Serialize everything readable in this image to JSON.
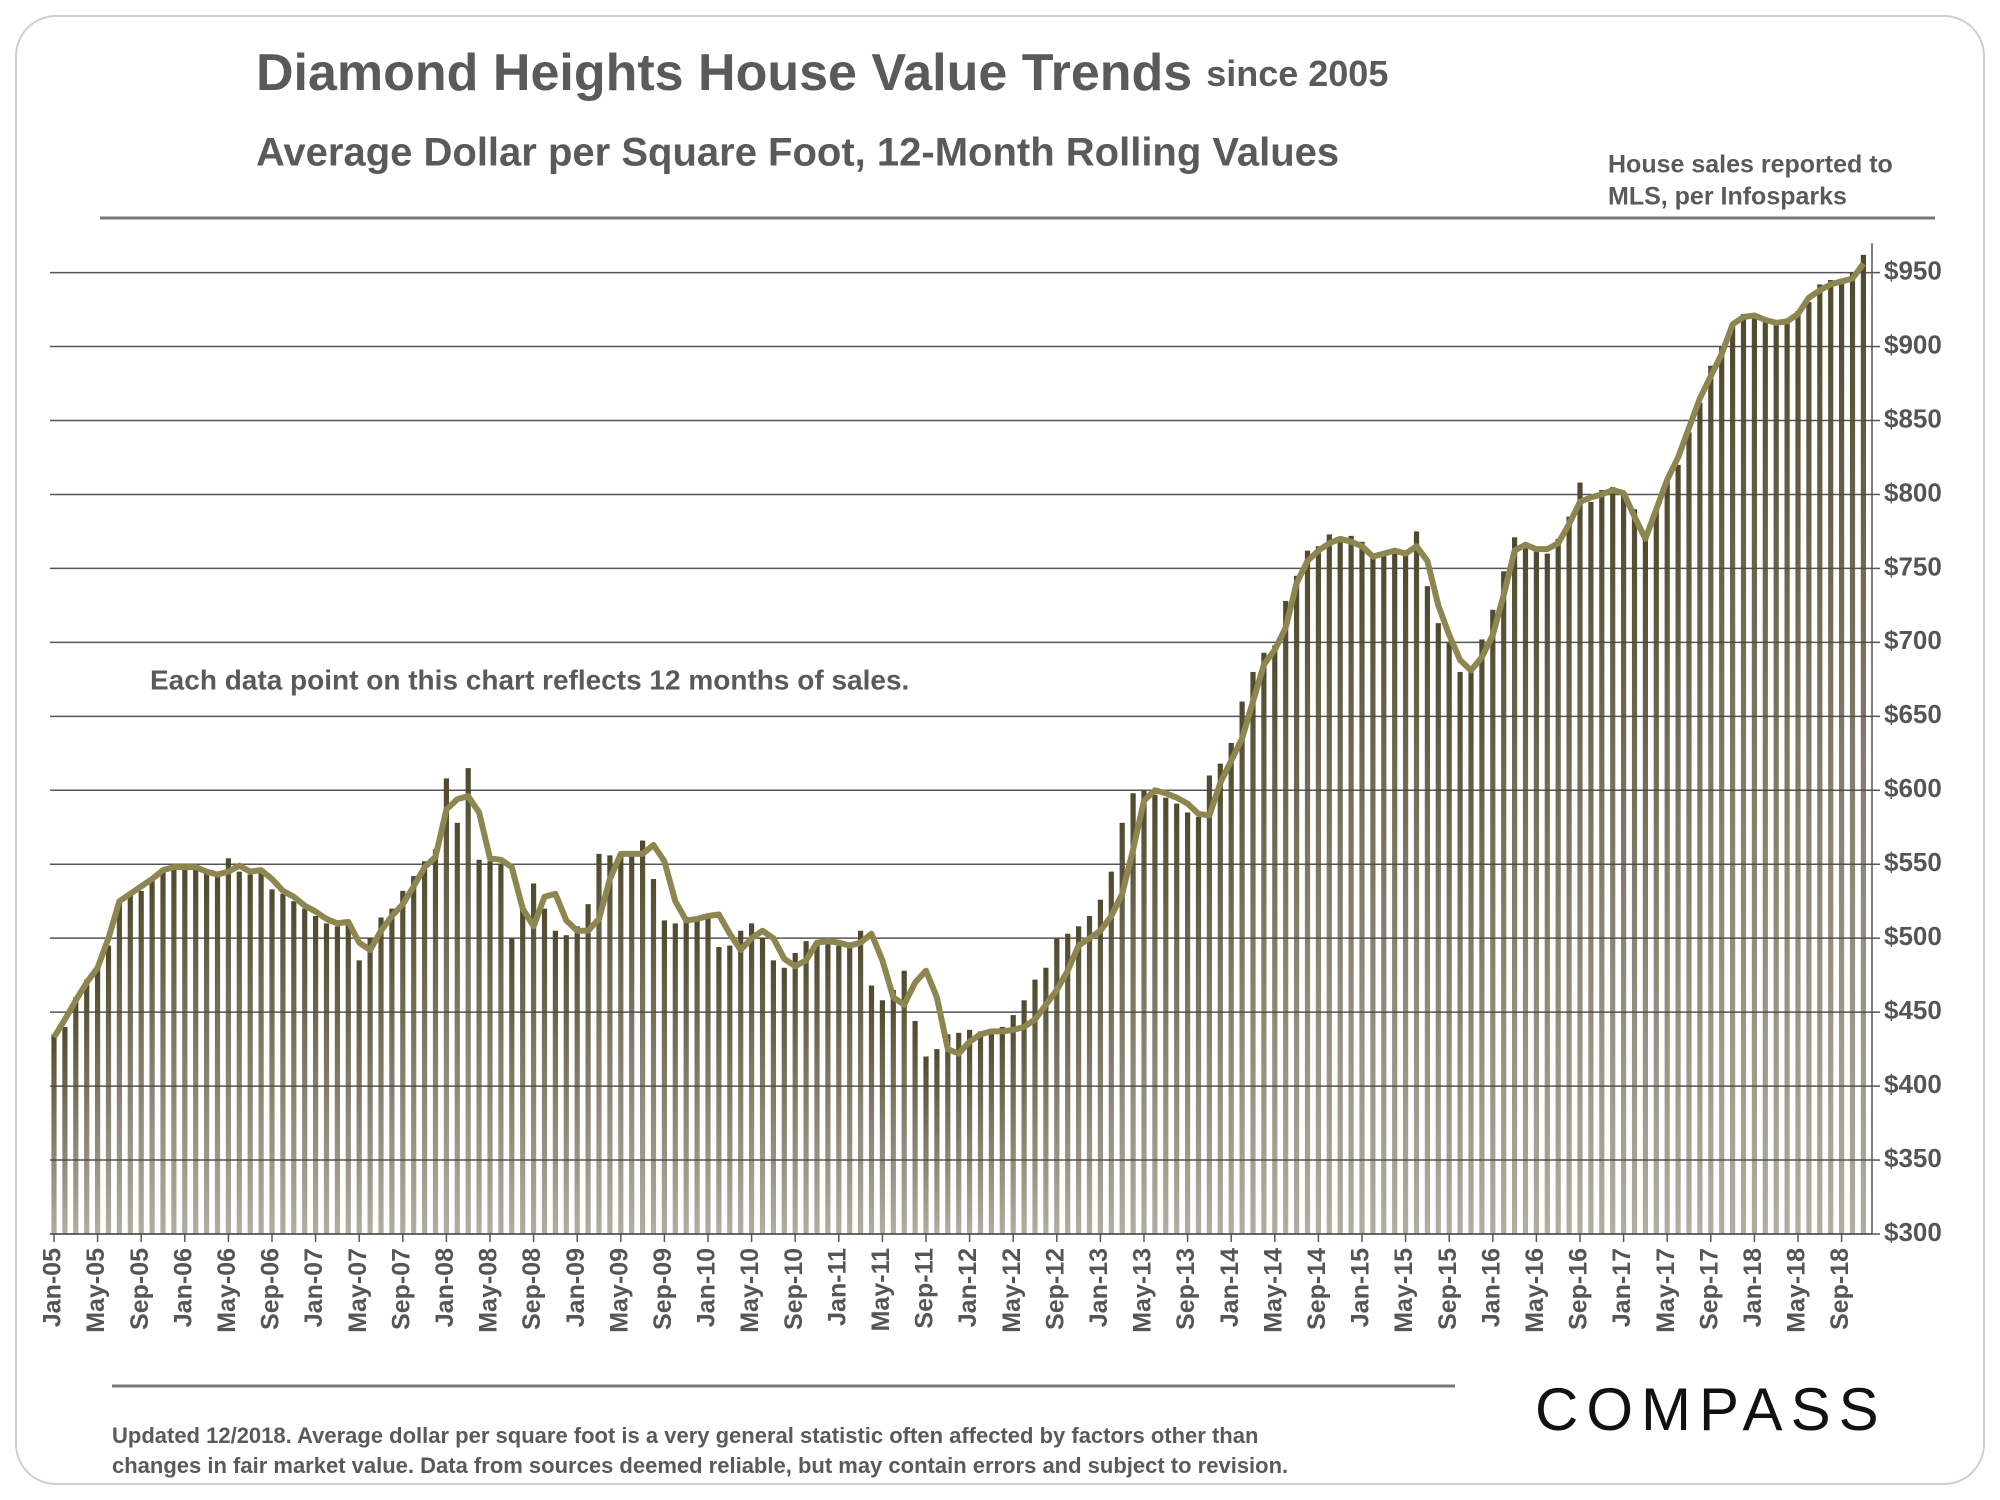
{
  "chart_data": {
    "type": "bar",
    "title": "Diamond Heights House Value Trends",
    "title_suffix": "since 2005",
    "subtitle": "Average Dollar per Square Foot, 12-Month Rolling Values",
    "source_note": [
      "House sales reported to",
      "MLS, per Infosparks"
    ],
    "annotation": "Each data point on this chart reflects 12 months of sales.",
    "footnote": [
      "Updated 12/2018. Average dollar per square foot is a very general statistic often affected by factors other than",
      "changes in fair market value. Data from sources deemed reliable, but may contain errors and subject to revision."
    ],
    "brand": "COMPASS",
    "categories": [
      "Jan-05",
      null,
      null,
      null,
      "May-05",
      null,
      null,
      null,
      "Sep-05",
      null,
      null,
      null,
      "Jan-06",
      null,
      null,
      null,
      "May-06",
      null,
      null,
      null,
      "Sep-06",
      null,
      null,
      null,
      "Jan-07",
      null,
      null,
      null,
      "May-07",
      null,
      null,
      null,
      "Sep-07",
      null,
      null,
      null,
      "Jan-08",
      null,
      null,
      null,
      "May-08",
      null,
      null,
      null,
      "Sep-08",
      null,
      null,
      null,
      "Jan-09",
      null,
      null,
      null,
      "May-09",
      null,
      null,
      null,
      "Sep-09",
      null,
      null,
      null,
      "Jan-10",
      null,
      null,
      null,
      "May-10",
      null,
      null,
      null,
      "Sep-10",
      null,
      null,
      null,
      "Jan-11",
      null,
      null,
      null,
      "May-11",
      null,
      null,
      null,
      "Sep-11",
      null,
      null,
      null,
      "Jan-12",
      null,
      null,
      null,
      "May-12",
      null,
      null,
      null,
      "Sep-12",
      null,
      null,
      null,
      "Jan-13",
      null,
      null,
      null,
      "May-13",
      null,
      null,
      null,
      "Sep-13",
      null,
      null,
      null,
      "Jan-14",
      null,
      null,
      null,
      "May-14",
      null,
      null,
      null,
      "Sep-14",
      null,
      null,
      null,
      "Jan-15",
      null,
      null,
      null,
      "May-15",
      null,
      null,
      null,
      "Sep-15",
      null,
      null,
      null,
      "Jan-16",
      null,
      null,
      null,
      "May-16",
      null,
      null,
      null,
      "Sep-16",
      null,
      null,
      null,
      "Jan-17",
      null,
      null,
      null,
      "May-17",
      null,
      null,
      null,
      "Sep-17",
      null,
      null,
      null,
      "Jan-18",
      null,
      null,
      null,
      "May-18",
      null,
      null,
      null,
      "Sep-18",
      null,
      null
    ],
    "series": [
      {
        "type": "bar",
        "color": "#4f4a2e",
        "values": [
          435,
          440,
          460,
          472,
          480,
          495,
          525,
          530,
          532,
          540,
          545,
          548,
          548,
          547,
          544,
          542,
          554,
          545,
          543,
          545,
          533,
          530,
          525,
          520,
          515,
          510,
          508,
          512,
          485,
          500,
          514,
          520,
          532,
          542,
          552,
          560,
          608,
          578,
          615,
          553,
          552,
          550,
          500,
          522,
          537,
          520,
          505,
          502,
          508,
          523,
          557,
          556,
          557,
          558,
          566,
          540,
          512,
          510,
          512,
          513,
          514,
          494,
          495,
          505,
          510,
          500,
          485,
          480,
          490,
          498,
          497,
          496,
          495,
          497,
          505,
          468,
          458,
          465,
          478,
          444,
          420,
          425,
          435,
          436,
          438,
          437,
          438,
          440,
          448,
          458,
          472,
          480,
          500,
          503,
          508,
          515,
          526,
          545,
          578,
          598,
          600,
          597,
          595,
          591,
          585,
          582,
          610,
          618,
          632,
          660,
          680,
          693,
          698,
          728,
          745,
          762,
          765,
          773,
          770,
          772,
          768,
          757,
          760,
          760,
          760,
          775,
          738,
          713,
          700,
          680,
          680,
          702,
          722,
          748,
          771,
          765,
          763,
          760,
          770,
          785,
          808,
          795,
          803,
          805,
          800,
          790,
          772,
          790,
          810,
          820,
          842,
          862,
          887,
          900,
          916,
          922,
          920,
          918,
          915,
          918,
          924,
          930,
          942,
          945,
          945,
          950,
          962
        ]
      },
      {
        "type": "line",
        "color": "#8e8650",
        "values": [
          433,
          445,
          458,
          470,
          480,
          500,
          525,
          530,
          535,
          540,
          546,
          548,
          548,
          548,
          545,
          543,
          545,
          549,
          545,
          546,
          540,
          532,
          528,
          522,
          518,
          513,
          510,
          511,
          497,
          492,
          505,
          515,
          523,
          535,
          548,
          555,
          587,
          594,
          596,
          585,
          554,
          553,
          548,
          520,
          508,
          528,
          530,
          512,
          505,
          505,
          513,
          540,
          557,
          557,
          557,
          563,
          552,
          525,
          512,
          513,
          515,
          516,
          503,
          492,
          500,
          505,
          500,
          486,
          481,
          485,
          497,
          498,
          497,
          495,
          497,
          503,
          485,
          460,
          455,
          470,
          478,
          460,
          425,
          422,
          430,
          435,
          437,
          437,
          438,
          440,
          445,
          455,
          465,
          478,
          495,
          500,
          505,
          515,
          530,
          560,
          593,
          600,
          598,
          595,
          591,
          584,
          583,
          605,
          620,
          635,
          660,
          685,
          695,
          710,
          740,
          755,
          762,
          767,
          770,
          768,
          765,
          758,
          760,
          762,
          760,
          765,
          755,
          725,
          705,
          688,
          681,
          690,
          705,
          732,
          762,
          766,
          763,
          763,
          767,
          780,
          795,
          798,
          800,
          803,
          801,
          785,
          770,
          790,
          810,
          825,
          845,
          865,
          880,
          895,
          915,
          920,
          921,
          918,
          916,
          917,
          922,
          933,
          938,
          942,
          944,
          946,
          956
        ]
      }
    ],
    "ylim": [
      300,
      970
    ],
    "yticks": [
      {
        "value": 300,
        "label": "$300"
      },
      {
        "value": 350,
        "label": "$350"
      },
      {
        "value": 400,
        "label": "$400"
      },
      {
        "value": 450,
        "label": "$450"
      },
      {
        "value": 500,
        "label": "$500"
      },
      {
        "value": 550,
        "label": "$550"
      },
      {
        "value": 600,
        "label": "$600"
      },
      {
        "value": 650,
        "label": "$650"
      },
      {
        "value": 700,
        "label": "$700"
      },
      {
        "value": 750,
        "label": "$750"
      },
      {
        "value": 800,
        "label": "$800"
      },
      {
        "value": 850,
        "label": "$850"
      },
      {
        "value": 900,
        "label": "$900"
      },
      {
        "value": 950,
        "label": "$950"
      }
    ],
    "grid": true
  }
}
